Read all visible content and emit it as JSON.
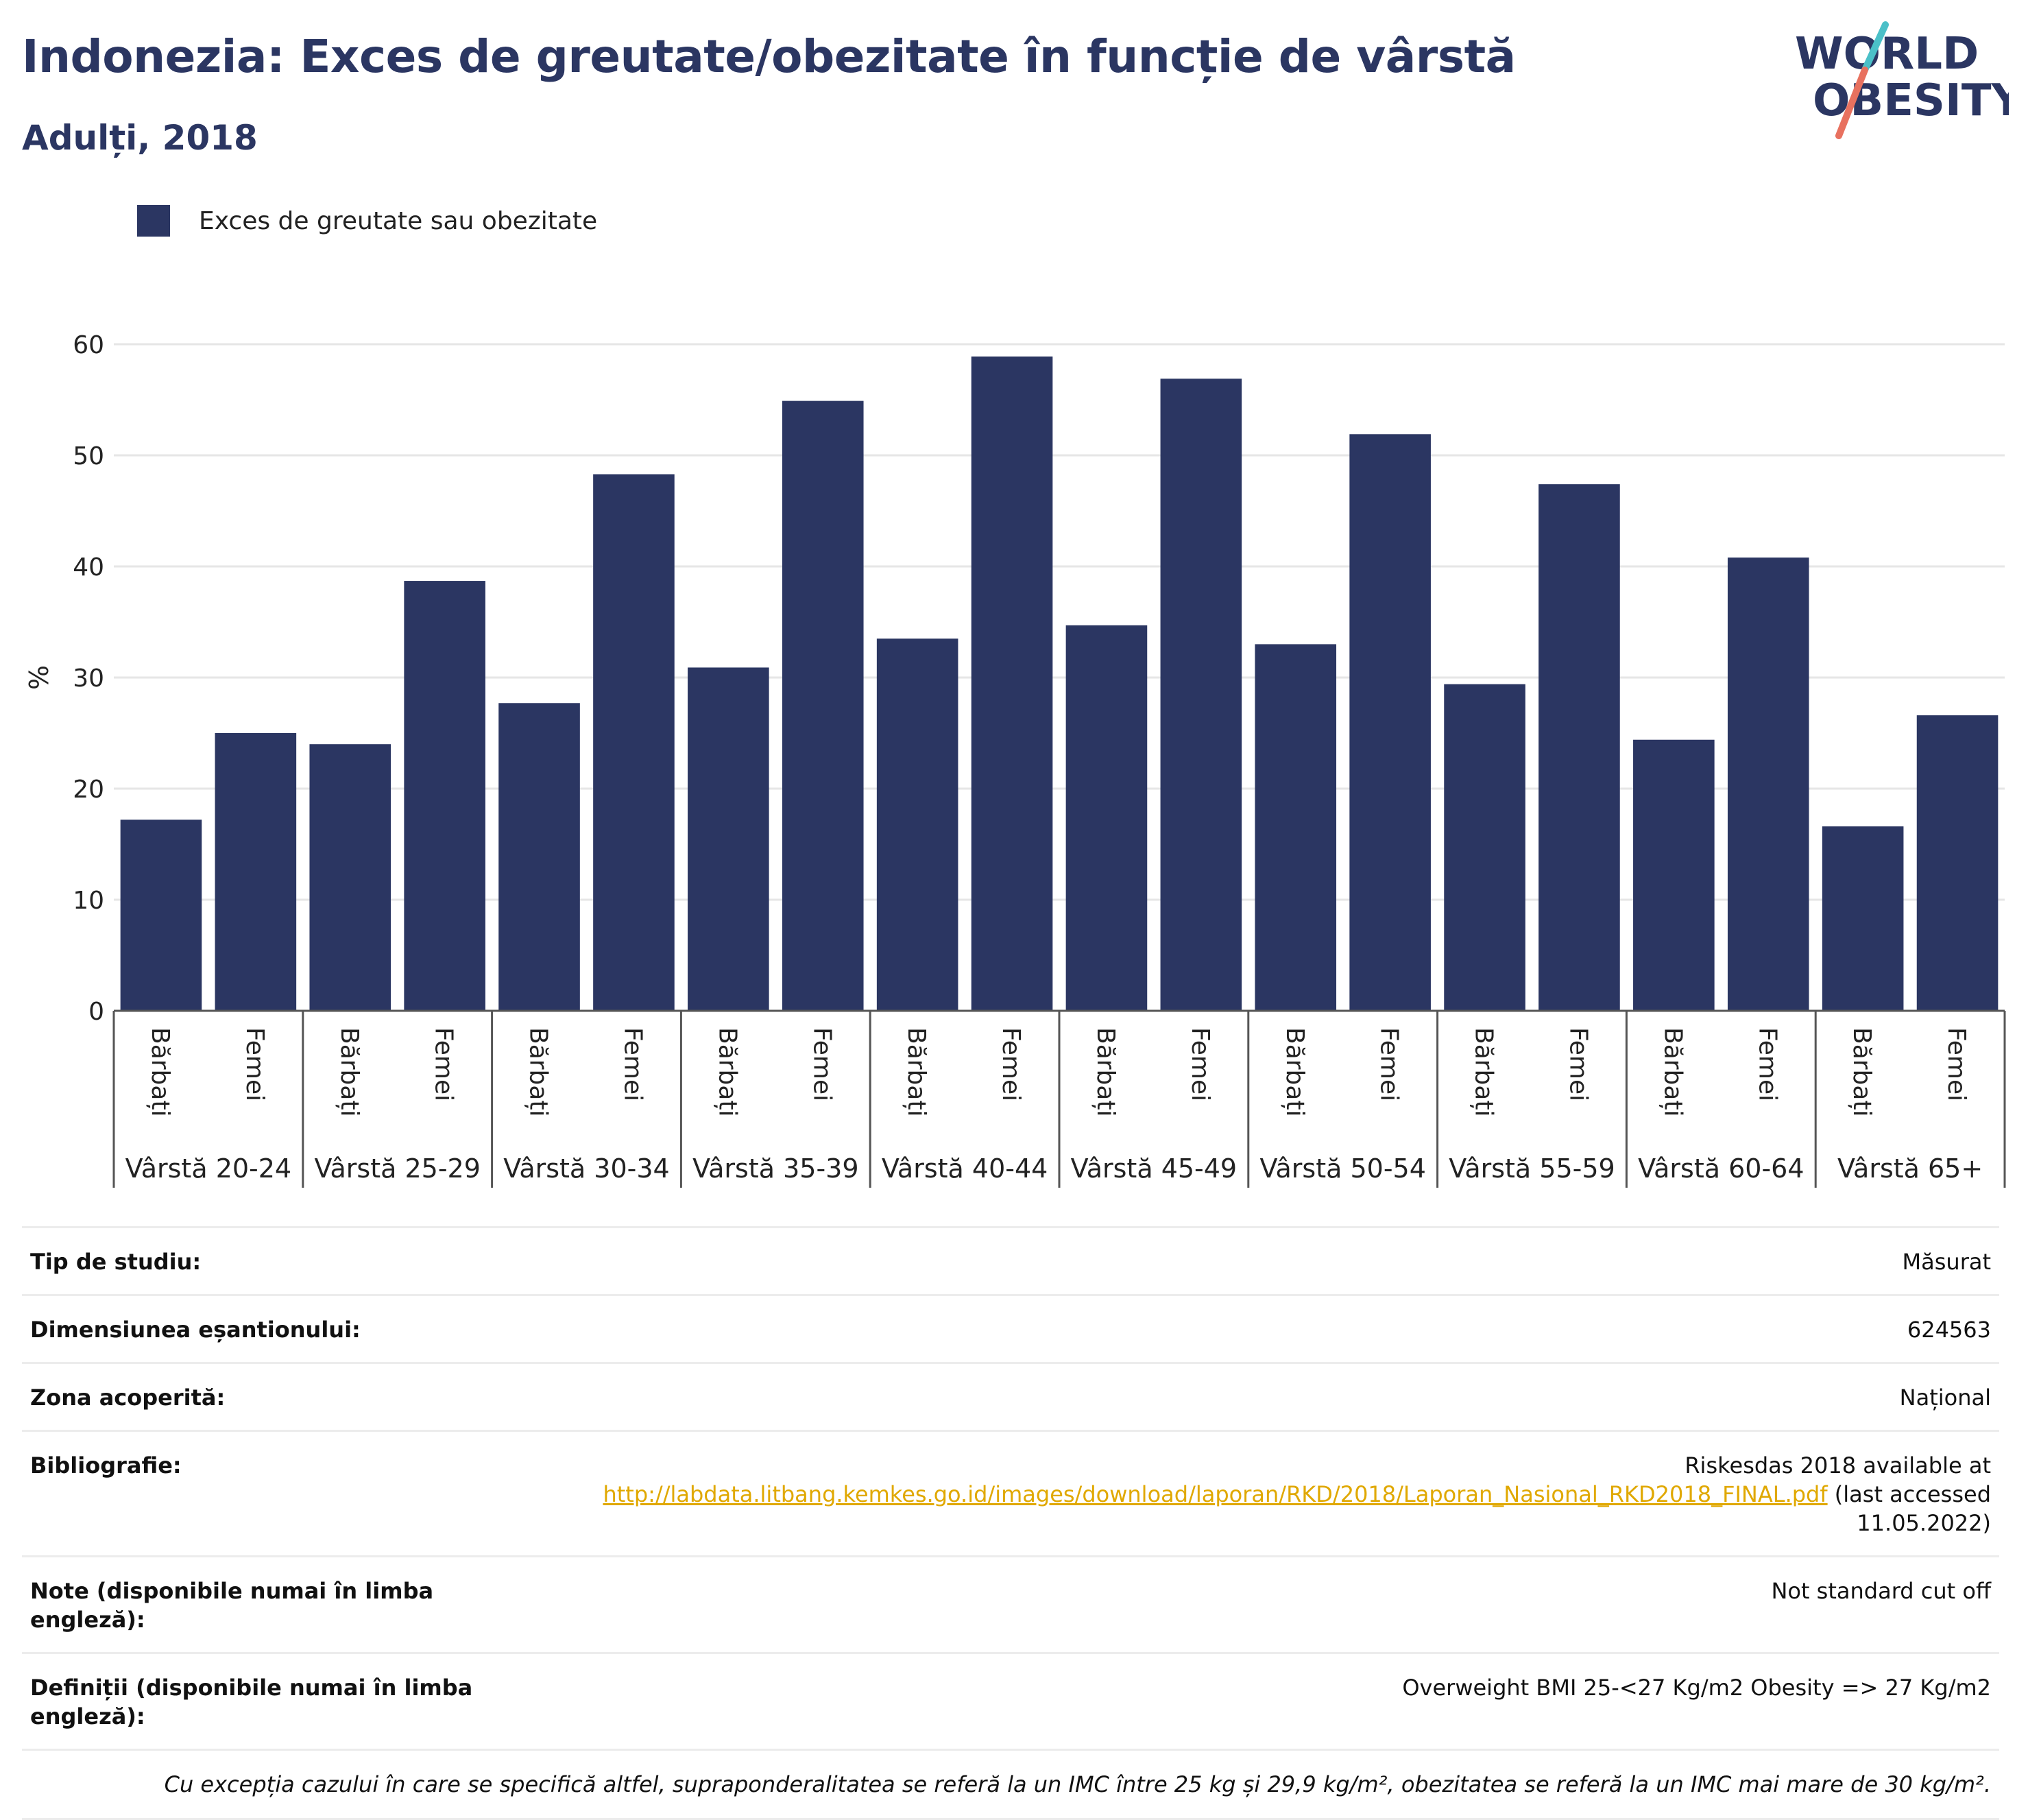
{
  "header": {
    "title": "Indonezia: Exces de greutate/obezitate în funcție de vârstă",
    "subtitle": "Adulți, 2018"
  },
  "logo": {
    "line1": "WORLD",
    "line2": "OBESITY",
    "slash_color_top": "#4bc0c8",
    "slash_color_bottom": "#e8715f"
  },
  "legend": {
    "label": "Exces de greutate sau obezitate"
  },
  "colors": {
    "bar": "#2b3662",
    "axis": "#555555",
    "grid": "#e6e6e6",
    "title": "#2b3662",
    "link": "#e0a800"
  },
  "chart_data": {
    "type": "bar",
    "ylabel": "%",
    "ylim": [
      0,
      60
    ],
    "yticks": [
      0,
      10,
      20,
      30,
      40,
      50,
      60
    ],
    "grid": true,
    "legend_position": "top-left",
    "groups": [
      "Vârstă 20-24",
      "Vârstă 25-29",
      "Vârstă 30-34",
      "Vârstă 35-39",
      "Vârstă 40-44",
      "Vârstă 45-49",
      "Vârstă 50-54",
      "Vârstă 55-59",
      "Vârstă 60-64",
      "Vârstă 65+"
    ],
    "subcategories": [
      "Bărbați",
      "Femei"
    ],
    "series": [
      {
        "name": "Exces de greutate sau obezitate",
        "values": [
          17.2,
          25.0,
          24.0,
          38.7,
          27.7,
          48.3,
          30.9,
          54.9,
          33.5,
          58.9,
          34.7,
          56.9,
          33.0,
          51.9,
          29.4,
          47.4,
          24.4,
          40.8,
          16.6,
          26.6
        ]
      }
    ]
  },
  "info": {
    "rows": [
      {
        "label": "Tip de studiu:",
        "value": "Măsurat"
      },
      {
        "label": "Dimensiunea eșantionului:",
        "value": "624563"
      },
      {
        "label": "Zona acoperită:",
        "value": "Național"
      }
    ],
    "bibliography": {
      "label": "Bibliografie:",
      "line1": "Riskesdas 2018 available at",
      "link": "http://labdata.litbang.kemkes.go.id/images/download/laporan/RKD/2018/Laporan_Nasional_RKD2018_FINAL.pdf",
      "after_link": " (last accessed",
      "line3": "11.05.2022)"
    },
    "notes": {
      "label": "Note (disponibile numai în limba engleză):",
      "value": "Not standard cut off"
    },
    "definitions": {
      "label_line1": "Definiții (disponibile numai în limba",
      "label_line2": "engleză):",
      "value": "Overweight BMI 25-<27 Kg/m2 Obesity => 27 Kg/m2"
    },
    "footnote": "Cu excepția cazului în care se specifică altfel, supraponderalitatea se referă la un IMC între 25 kg și 29,9 kg/m², obezitatea se referă la un IMC mai mare de 30 kg/m²."
  }
}
